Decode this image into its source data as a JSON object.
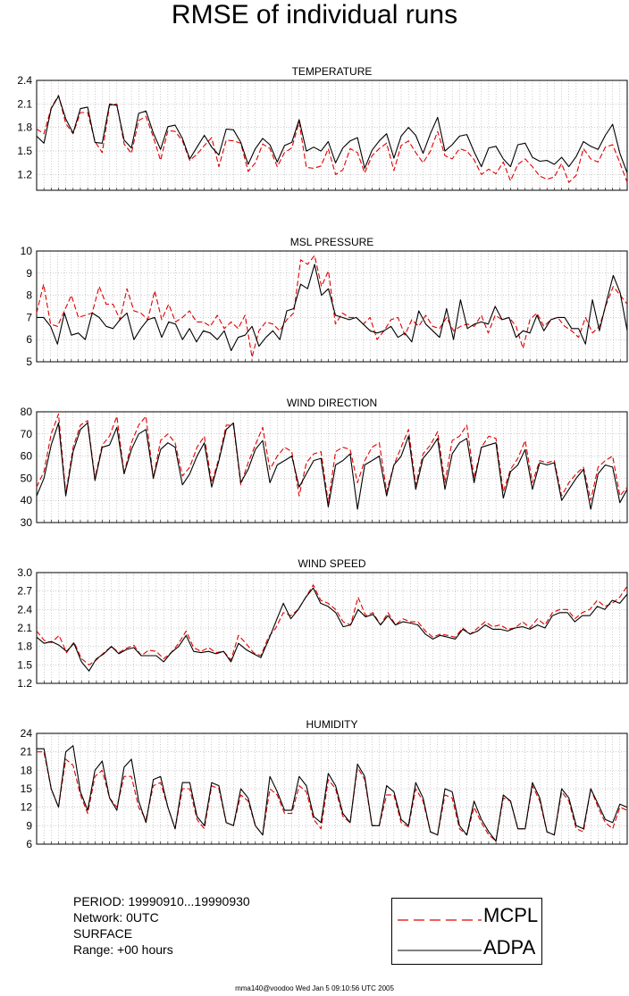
{
  "title": "RMSE of individual runs",
  "footer": "mma140@voodoo Wed Jan  5 09:10:56 UTC 2005",
  "info": {
    "period": "PERIOD: 19990910...19990930",
    "network": "Network: 0UTC",
    "surface": "SURFACE",
    "range": "Range: +00 hours"
  },
  "legend": [
    {
      "name": "MCPL",
      "color": "#e00000",
      "dash": true
    },
    {
      "name": "ADPA",
      "color": "#000000",
      "dash": false
    }
  ],
  "chart_data": [
    {
      "type": "line",
      "title": "TEMPERATURE",
      "ylim": [
        1.0,
        2.4
      ],
      "yticks": [
        "1.2",
        "1.5",
        "1.8",
        "2.1",
        "2.4"
      ],
      "series": [
        {
          "name": "MCPL",
          "values": [
            1.78,
            1.72,
            2.05,
            2.21,
            1.85,
            1.72,
            1.99,
            1.99,
            1.62,
            1.48,
            2.08,
            2.1,
            1.59,
            1.47,
            1.89,
            1.94,
            1.68,
            1.38,
            1.76,
            1.75,
            1.63,
            1.38,
            1.46,
            1.57,
            1.67,
            1.3,
            1.64,
            1.63,
            1.6,
            1.24,
            1.35,
            1.59,
            1.53,
            1.3,
            1.48,
            1.54,
            1.87,
            1.29,
            1.28,
            1.31,
            1.53,
            1.2,
            1.26,
            1.53,
            1.48,
            1.22,
            1.44,
            1.53,
            1.6,
            1.25,
            1.57,
            1.63,
            1.48,
            1.35,
            1.5,
            1.75,
            1.44,
            1.4,
            1.53,
            1.5,
            1.39,
            1.2,
            1.27,
            1.21,
            1.36,
            1.12,
            1.33,
            1.4,
            1.3,
            1.18,
            1.14,
            1.17,
            1.34,
            1.1,
            1.19,
            1.53,
            1.4,
            1.36,
            1.55,
            1.58,
            1.35,
            1.1
          ]
        },
        {
          "name": "ADPA",
          "values": [
            1.69,
            1.6,
            2.04,
            2.2,
            1.91,
            1.73,
            2.04,
            2.06,
            1.61,
            1.6,
            2.1,
            2.08,
            1.64,
            1.54,
            1.98,
            2.01,
            1.73,
            1.52,
            1.81,
            1.83,
            1.66,
            1.4,
            1.55,
            1.7,
            1.55,
            1.45,
            1.78,
            1.77,
            1.61,
            1.33,
            1.53,
            1.66,
            1.58,
            1.36,
            1.57,
            1.61,
            1.9,
            1.5,
            1.55,
            1.5,
            1.62,
            1.35,
            1.54,
            1.63,
            1.67,
            1.28,
            1.51,
            1.63,
            1.72,
            1.41,
            1.69,
            1.8,
            1.7,
            1.47,
            1.72,
            1.93,
            1.5,
            1.58,
            1.69,
            1.71,
            1.49,
            1.3,
            1.54,
            1.56,
            1.4,
            1.3,
            1.58,
            1.6,
            1.42,
            1.37,
            1.38,
            1.33,
            1.42,
            1.3,
            1.43,
            1.62,
            1.56,
            1.52,
            1.7,
            1.84,
            1.47,
            1.22
          ]
        }
      ]
    },
    {
      "type": "line",
      "title": "MSL PRESSURE",
      "ylim": [
        5,
        10
      ],
      "yticks": [
        "5",
        "6",
        "7",
        "8",
        "9",
        "10"
      ],
      "series": [
        {
          "name": "MCPL",
          "values": [
            7.2,
            8.5,
            6.7,
            6.6,
            7.3,
            8.0,
            7.0,
            7.1,
            7.2,
            8.4,
            7.6,
            7.6,
            6.9,
            8.3,
            7.3,
            7.2,
            6.9,
            8.2,
            6.9,
            7.6,
            6.8,
            7.0,
            7.3,
            6.8,
            6.8,
            6.6,
            7.1,
            6.5,
            6.8,
            6.5,
            7.1,
            5.2,
            6.4,
            6.8,
            6.7,
            6.4,
            6.9,
            7.2,
            9.6,
            9.4,
            9.8,
            8.4,
            9.1,
            6.7,
            7.2,
            7.0,
            7.0,
            6.7,
            7.0,
            6.0,
            6.4,
            6.9,
            7.0,
            6.2,
            6.9,
            6.6,
            7.1,
            6.6,
            6.5,
            7.0,
            6.4,
            6.6,
            6.7,
            6.6,
            7.1,
            6.3,
            7.1,
            6.9,
            7.0,
            6.6,
            5.6,
            6.9,
            7.2,
            6.6,
            6.9,
            7.0,
            6.6,
            6.4,
            6.1,
            7.0,
            6.3,
            6.6,
            7.6,
            8.4,
            8.0,
            7.6
          ]
        },
        {
          "name": "ADPA",
          "values": [
            7.0,
            7.0,
            6.6,
            5.8,
            7.2,
            6.2,
            6.3,
            6.0,
            7.2,
            7.0,
            6.6,
            6.5,
            6.9,
            7.2,
            6.0,
            6.5,
            6.9,
            7.0,
            6.1,
            6.8,
            6.7,
            6.0,
            6.5,
            5.9,
            6.4,
            6.3,
            6.0,
            6.4,
            5.5,
            6.1,
            6.2,
            6.6,
            5.7,
            6.1,
            6.4,
            6.0,
            7.3,
            7.4,
            8.5,
            8.3,
            9.4,
            8.0,
            8.3,
            7.1,
            7.0,
            6.9,
            7.0,
            6.7,
            6.4,
            6.3,
            6.4,
            6.6,
            6.1,
            6.3,
            5.9,
            7.3,
            6.7,
            6.4,
            6.1,
            7.4,
            6.0,
            7.8,
            6.5,
            6.7,
            6.8,
            6.7,
            7.5,
            6.9,
            7.0,
            6.1,
            6.4,
            6.3,
            7.1,
            6.4,
            6.9,
            7.0,
            7.0,
            6.5,
            6.5,
            5.8,
            7.8,
            6.4,
            7.7,
            8.9,
            8.1,
            6.4
          ]
        }
      ]
    },
    {
      "type": "line",
      "title": "WIND DIRECTION",
      "ylim": [
        30,
        80
      ],
      "yticks": [
        "30",
        "40",
        "50",
        "60",
        "70",
        "80"
      ],
      "series": [
        {
          "name": "MCPL",
          "values": [
            46,
            53,
            70,
            79,
            43,
            64,
            74,
            76,
            50,
            65,
            69,
            78,
            52,
            66,
            74,
            78,
            50,
            67,
            70,
            66,
            51,
            55,
            64,
            69,
            48,
            59,
            74,
            74,
            47,
            57,
            65,
            73,
            54,
            60,
            64,
            62,
            42,
            57,
            61,
            62,
            39,
            62,
            64,
            63,
            48,
            58,
            64,
            66,
            44,
            56,
            64,
            72,
            47,
            61,
            65,
            71,
            48,
            67,
            69,
            74,
            50,
            64,
            69,
            68,
            44,
            54,
            59,
            67,
            48,
            58,
            57,
            58,
            42,
            48,
            52,
            55,
            40,
            55,
            58,
            60,
            42,
            46
          ]
        },
        {
          "name": "ADPA",
          "values": [
            42,
            50,
            65,
            75,
            42,
            62,
            72,
            75,
            49,
            64,
            65,
            73,
            52,
            63,
            70,
            72,
            50,
            63,
            66,
            64,
            47,
            52,
            60,
            66,
            46,
            58,
            72,
            75,
            48,
            54,
            63,
            67,
            48,
            56,
            58,
            60,
            46,
            52,
            58,
            59,
            37,
            56,
            58,
            61,
            36,
            56,
            58,
            60,
            42,
            56,
            60,
            69,
            45,
            59,
            63,
            68,
            45,
            61,
            66,
            68,
            48,
            64,
            65,
            66,
            41,
            53,
            56,
            63,
            45,
            57,
            56,
            57,
            40,
            45,
            50,
            54,
            36,
            52,
            56,
            55,
            39,
            45
          ]
        }
      ]
    },
    {
      "type": "line",
      "title": "WIND SPEED",
      "ylim": [
        1.2,
        3.0
      ],
      "yticks": [
        "1.2",
        "1.5",
        "1.8",
        "2.1",
        "2.4",
        "2.7",
        "3.0"
      ],
      "series": [
        {
          "name": "MCPL",
          "values": [
            2.05,
            1.9,
            1.86,
            1.98,
            1.7,
            1.87,
            1.6,
            1.5,
            1.58,
            1.7,
            1.8,
            1.7,
            1.77,
            1.82,
            1.65,
            1.74,
            1.72,
            1.6,
            1.7,
            1.85,
            2.05,
            1.78,
            1.72,
            1.78,
            1.7,
            1.72,
            1.58,
            1.98,
            1.85,
            1.7,
            1.65,
            1.95,
            2.1,
            2.35,
            2.3,
            2.4,
            2.6,
            2.8,
            2.55,
            2.5,
            2.4,
            2.2,
            2.15,
            2.6,
            2.3,
            2.35,
            2.15,
            2.35,
            2.15,
            2.25,
            2.2,
            2.2,
            2.05,
            1.95,
            2.0,
            1.98,
            1.95,
            2.1,
            2.0,
            2.1,
            2.2,
            2.12,
            2.15,
            2.08,
            2.1,
            2.2,
            2.1,
            2.25,
            2.15,
            2.35,
            2.4,
            2.4,
            2.25,
            2.35,
            2.4,
            2.55,
            2.45,
            2.5,
            2.6,
            2.78
          ]
        },
        {
          "name": "ADPA",
          "values": [
            1.95,
            1.85,
            1.88,
            1.82,
            1.72,
            1.85,
            1.55,
            1.4,
            1.6,
            1.68,
            1.8,
            1.68,
            1.75,
            1.78,
            1.65,
            1.65,
            1.65,
            1.55,
            1.7,
            1.8,
            1.98,
            1.72,
            1.7,
            1.72,
            1.68,
            1.72,
            1.55,
            1.85,
            1.75,
            1.68,
            1.62,
            1.9,
            2.2,
            2.5,
            2.25,
            2.4,
            2.6,
            2.75,
            2.5,
            2.45,
            2.35,
            2.12,
            2.15,
            2.4,
            2.28,
            2.32,
            2.15,
            2.3,
            2.15,
            2.2,
            2.18,
            2.15,
            2.0,
            1.92,
            1.98,
            1.95,
            1.92,
            2.08,
            2.0,
            2.05,
            2.15,
            2.08,
            2.08,
            2.05,
            2.1,
            2.12,
            2.08,
            2.15,
            2.1,
            2.3,
            2.35,
            2.35,
            2.2,
            2.3,
            2.3,
            2.45,
            2.4,
            2.55,
            2.5,
            2.65
          ]
        }
      ]
    },
    {
      "type": "line",
      "title": "HUMIDITY",
      "ylim": [
        6,
        24
      ],
      "yticks": [
        "6",
        "9",
        "12",
        "15",
        "18",
        "21",
        "24"
      ],
      "series": [
        {
          "name": "MCPL",
          "values": [
            21.0,
            21.0,
            15.0,
            12.0,
            19.8,
            18.8,
            14.0,
            11.0,
            17.0,
            18.0,
            13.5,
            12.0,
            17.0,
            17.0,
            12.0,
            10.0,
            15.5,
            16.0,
            12.0,
            8.5,
            15.0,
            15.0,
            10.0,
            8.5,
            15.5,
            15.0,
            9.5,
            9.0,
            14.0,
            13.0,
            9.0,
            7.5,
            15.0,
            14.0,
            11.0,
            11.0,
            15.5,
            14.5,
            10.0,
            8.5,
            16.5,
            15.0,
            10.5,
            9.5,
            18.5,
            16.5,
            9.0,
            9.0,
            14.0,
            14.0,
            9.5,
            8.8,
            15.0,
            13.0,
            8.0,
            7.5,
            14.0,
            13.5,
            8.5,
            7.5,
            12.0,
            9.5,
            7.5,
            6.5,
            13.5,
            13.0,
            8.5,
            8.5,
            15.5,
            13.0,
            8.0,
            7.5,
            14.5,
            13.0,
            8.5,
            8.0,
            15.0,
            12.0,
            9.5,
            8.5,
            12.0,
            11.5
          ]
        },
        {
          "name": "ADPA",
          "values": [
            21.5,
            21.5,
            15.0,
            12.0,
            21.0,
            22.0,
            14.5,
            11.5,
            18.0,
            19.5,
            13.5,
            11.5,
            18.5,
            19.8,
            13.0,
            9.5,
            16.5,
            17.0,
            12.0,
            8.5,
            16.0,
            16.0,
            10.5,
            9.0,
            16.0,
            15.5,
            9.5,
            9.0,
            15.0,
            13.5,
            9.0,
            7.5,
            17.0,
            14.5,
            11.5,
            11.5,
            17.0,
            15.5,
            10.5,
            9.5,
            17.5,
            15.5,
            11.0,
            9.5,
            19.0,
            17.0,
            9.0,
            9.0,
            15.5,
            14.5,
            10.0,
            9.0,
            16.0,
            13.5,
            8.0,
            7.5,
            15.0,
            14.5,
            9.0,
            7.5,
            13.0,
            10.0,
            8.0,
            6.5,
            14.0,
            13.0,
            8.5,
            8.5,
            16.0,
            13.5,
            8.0,
            7.5,
            15.0,
            13.5,
            9.0,
            8.5,
            15.0,
            12.5,
            10.0,
            9.5,
            12.5,
            12.0
          ]
        }
      ]
    }
  ]
}
